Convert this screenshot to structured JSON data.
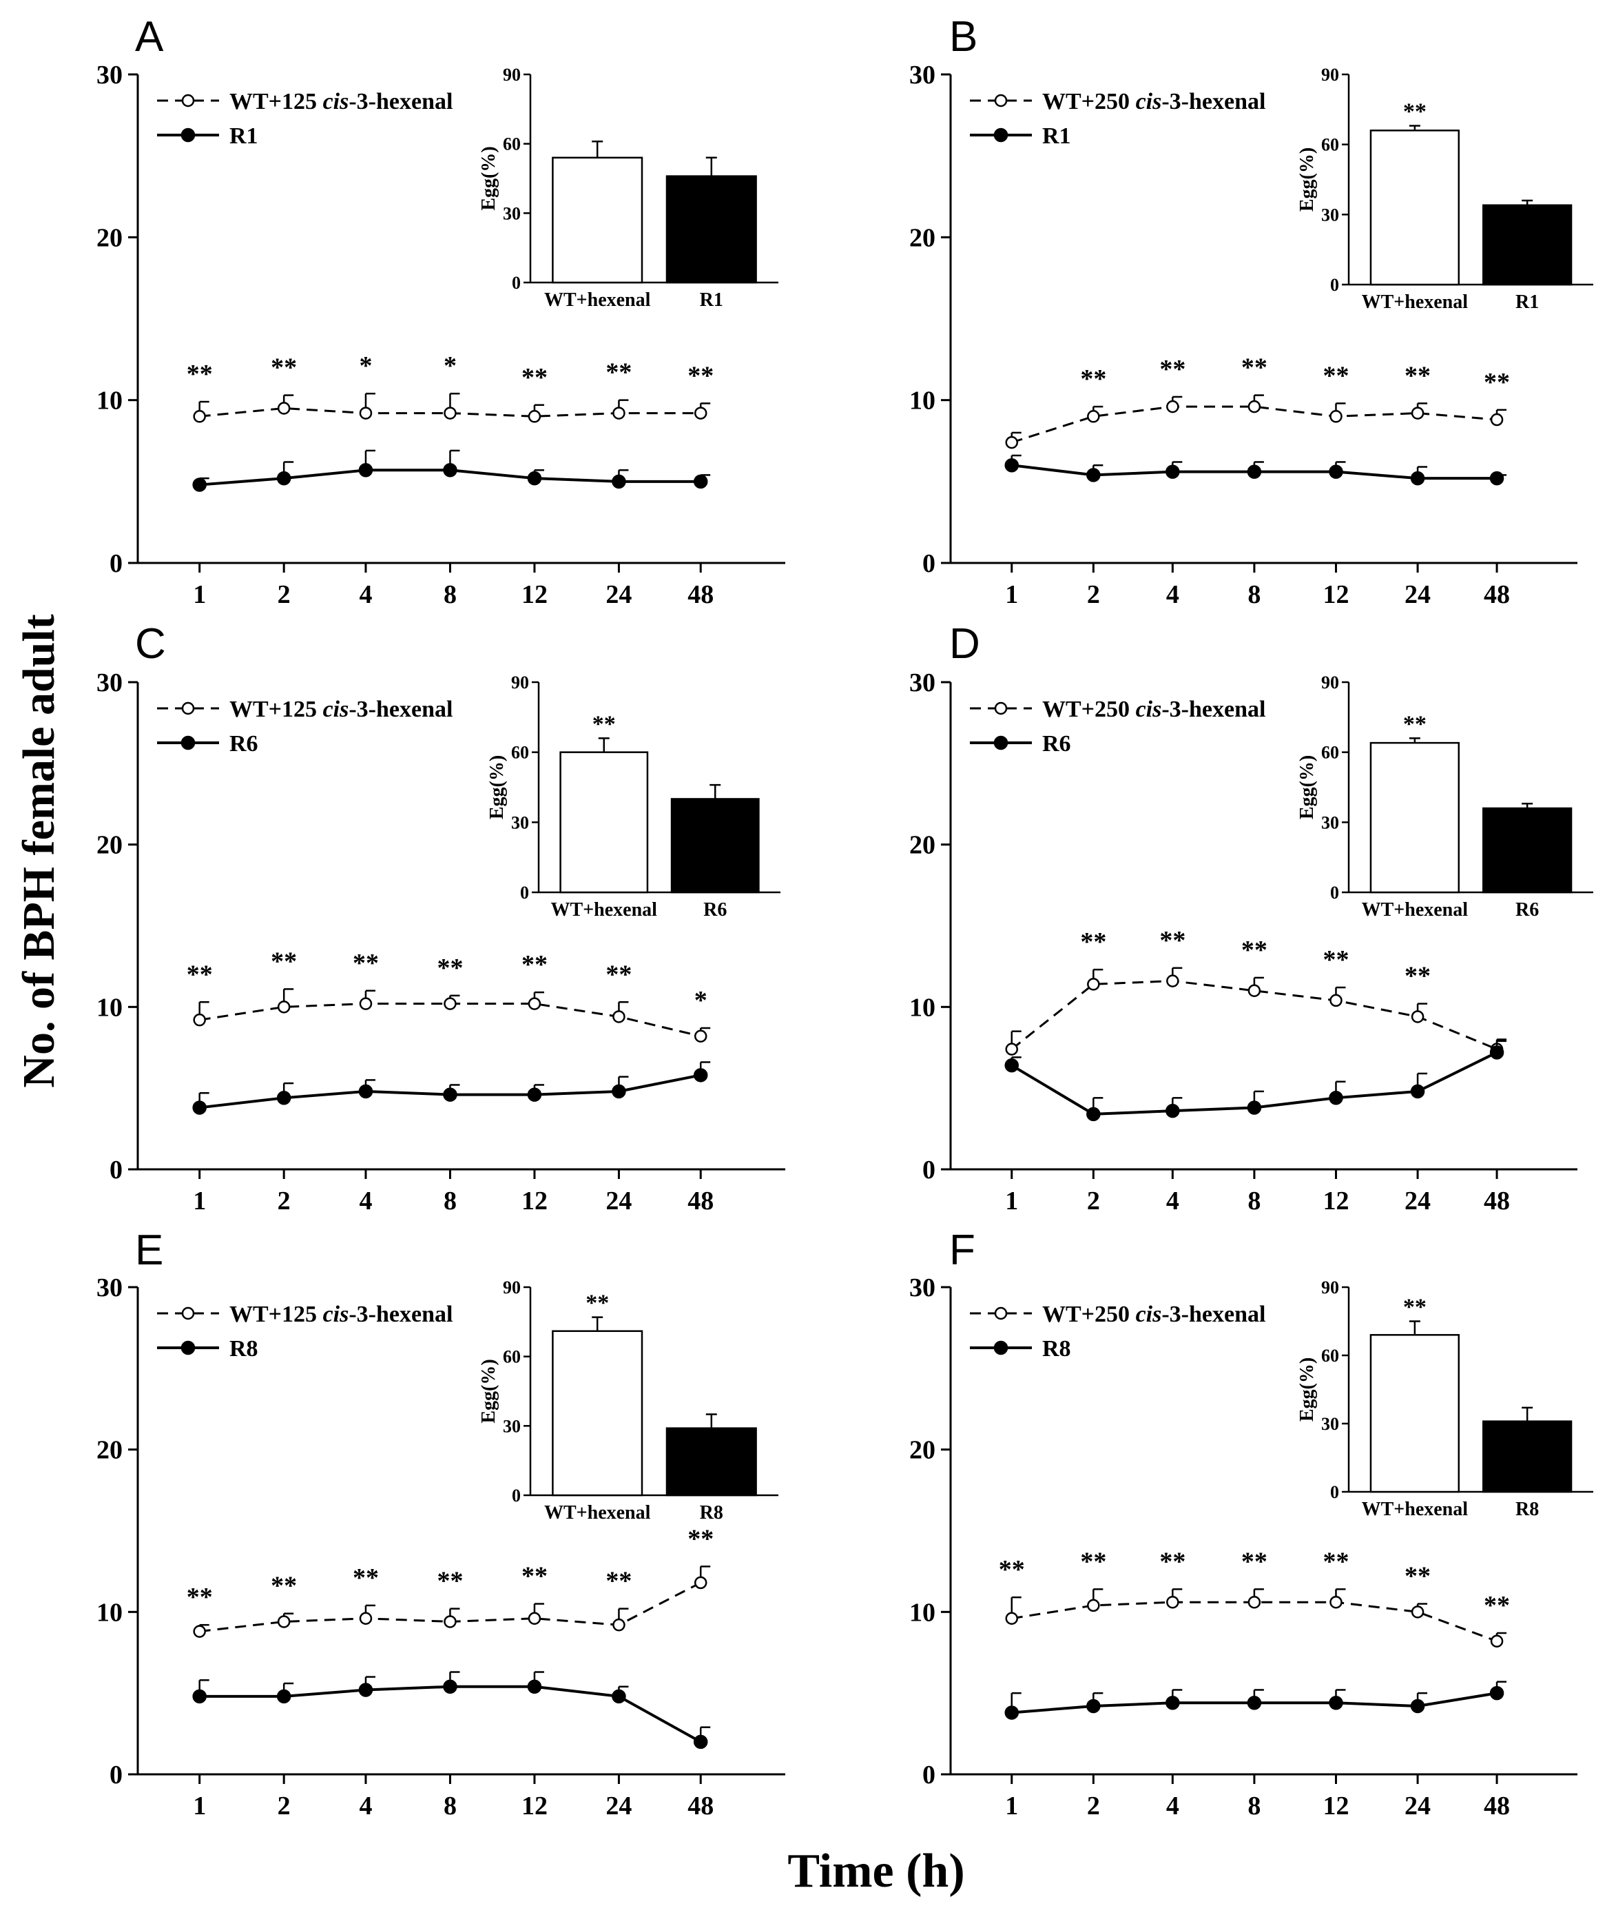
{
  "figure": {
    "ylabel": "No. of BPH female adult",
    "xlabel": "Time (h)"
  },
  "colors": {
    "axis": "#000000",
    "filled": "#000000",
    "open": "#ffffff"
  },
  "chart_data": [
    {
      "type": "line",
      "panel": "A",
      "categories": [
        "1",
        "2",
        "4",
        "8",
        "12",
        "24",
        "48"
      ],
      "ylim": [
        0,
        30
      ],
      "yticks": [
        "0",
        "10",
        "20",
        "30"
      ],
      "legend": {
        "dashed": {
          "prefix": "WT+125 ",
          "italic": "cis",
          "suffix": "-3-hexenal"
        },
        "solid": "R1"
      },
      "series": [
        {
          "name": "WT+125 cis-3-hexenal",
          "values": [
            9.0,
            9.5,
            9.2,
            9.2,
            9.0,
            9.2,
            9.2
          ],
          "errors": [
            0.9,
            0.8,
            1.2,
            1.2,
            0.7,
            0.8,
            0.6
          ]
        },
        {
          "name": "R1",
          "values": [
            4.8,
            5.2,
            5.7,
            5.7,
            5.2,
            5.0,
            5.0
          ],
          "errors": [
            0.4,
            1.0,
            1.2,
            1.2,
            0.5,
            0.7,
            0.4
          ]
        }
      ],
      "stars": [
        "**",
        "**",
        "*",
        "*",
        "**",
        "**",
        "**"
      ],
      "inset": {
        "type": "bar",
        "ylabel": "Egg(%)",
        "yticks": [
          "0",
          "30",
          "60",
          "90"
        ],
        "ylim": [
          0,
          90
        ],
        "categories": [
          "WT+hexenal",
          "R1"
        ],
        "values": [
          54,
          46
        ],
        "errors": [
          7,
          8
        ],
        "stars": [
          "",
          ""
        ]
      }
    },
    {
      "type": "line",
      "panel": "B",
      "categories": [
        "1",
        "2",
        "4",
        "8",
        "12",
        "24",
        "48"
      ],
      "ylim": [
        0,
        30
      ],
      "yticks": [
        "0",
        "10",
        "20",
        "30"
      ],
      "legend": {
        "dashed": {
          "prefix": "WT+250 ",
          "italic": "cis",
          "suffix": "-3-hexenal"
        },
        "solid": "R1"
      },
      "series": [
        {
          "name": "WT+250 cis-3-hexenal",
          "values": [
            7.4,
            9.0,
            9.6,
            9.6,
            9.0,
            9.2,
            8.8
          ],
          "errors": [
            0.6,
            0.6,
            0.6,
            0.7,
            0.8,
            0.6,
            0.6
          ]
        },
        {
          "name": "R1",
          "values": [
            6.0,
            5.4,
            5.6,
            5.6,
            5.6,
            5.2,
            5.2
          ],
          "errors": [
            0.6,
            0.6,
            0.6,
            0.6,
            0.6,
            0.7,
            0.2
          ]
        }
      ],
      "stars": [
        "",
        "**",
        "**",
        "**",
        "**",
        "**",
        "**"
      ],
      "inset": {
        "type": "bar",
        "ylabel": "Egg(%)",
        "yticks": [
          "0",
          "30",
          "60",
          "90"
        ],
        "ylim": [
          0,
          90
        ],
        "categories": [
          "WT+hexenal",
          "R1"
        ],
        "values": [
          66,
          34
        ],
        "errors": [
          2,
          2
        ],
        "stars": [
          "**",
          ""
        ]
      }
    },
    {
      "type": "line",
      "panel": "C",
      "categories": [
        "1",
        "2",
        "4",
        "8",
        "12",
        "24",
        "48"
      ],
      "ylim": [
        0,
        30
      ],
      "yticks": [
        "0",
        "10",
        "20",
        "30"
      ],
      "legend": {
        "dashed": {
          "prefix": "WT+125 ",
          "italic": "cis",
          "suffix": "-3-hexenal"
        },
        "solid": "R6"
      },
      "series": [
        {
          "name": "WT+125 cis-3-hexenal",
          "values": [
            9.2,
            10.0,
            10.2,
            10.2,
            10.2,
            9.4,
            8.2
          ],
          "errors": [
            1.1,
            1.1,
            0.8,
            0.5,
            0.7,
            0.9,
            0.5
          ]
        },
        {
          "name": "R6",
          "values": [
            3.8,
            4.4,
            4.8,
            4.6,
            4.6,
            4.8,
            5.8
          ],
          "errors": [
            0.9,
            0.9,
            0.7,
            0.6,
            0.6,
            0.9,
            0.8
          ]
        }
      ],
      "stars": [
        "**",
        "**",
        "**",
        "**",
        "**",
        "**",
        "*"
      ],
      "inset": {
        "type": "bar",
        "ylabel": "Egg(%)",
        "yticks": [
          "0",
          "30",
          "60",
          "90"
        ],
        "ylim": [
          0,
          90
        ],
        "categories": [
          "WT+hexenal",
          "R6"
        ],
        "values": [
          60,
          40
        ],
        "errors": [
          6,
          6
        ],
        "stars": [
          "**",
          ""
        ]
      }
    },
    {
      "type": "line",
      "panel": "D",
      "categories": [
        "1",
        "2",
        "4",
        "8",
        "12",
        "24",
        "48"
      ],
      "ylim": [
        0,
        30
      ],
      "yticks": [
        "0",
        "10",
        "20",
        "30"
      ],
      "legend": {
        "dashed": {
          "prefix": "WT+250 ",
          "italic": "cis",
          "suffix": "-3-hexenal"
        },
        "solid": "R6"
      },
      "series": [
        {
          "name": "WT+250 cis-3-hexenal",
          "values": [
            7.4,
            11.4,
            11.6,
            11.0,
            10.4,
            9.4,
            7.4
          ],
          "errors": [
            1.1,
            0.9,
            0.8,
            0.8,
            0.8,
            0.8,
            0.6
          ]
        },
        {
          "name": "R6",
          "values": [
            6.4,
            3.4,
            3.6,
            3.8,
            4.4,
            4.8,
            7.2
          ],
          "errors": [
            0.5,
            1.0,
            0.8,
            1.0,
            1.0,
            1.1,
            0.7
          ]
        }
      ],
      "stars": [
        "",
        "**",
        "**",
        "**",
        "**",
        "**",
        ""
      ],
      "inset": {
        "type": "bar",
        "ylabel": "Egg(%)",
        "yticks": [
          "0",
          "30",
          "60",
          "90"
        ],
        "ylim": [
          0,
          90
        ],
        "categories": [
          "WT+hexenal",
          "R6"
        ],
        "values": [
          64,
          36
        ],
        "errors": [
          2,
          2
        ],
        "stars": [
          "**",
          ""
        ]
      }
    },
    {
      "type": "line",
      "panel": "E",
      "categories": [
        "1",
        "2",
        "4",
        "8",
        "12",
        "24",
        "48"
      ],
      "ylim": [
        0,
        30
      ],
      "yticks": [
        "0",
        "10",
        "20",
        "30"
      ],
      "legend": {
        "dashed": {
          "prefix": "WT+125 ",
          "italic": "cis",
          "suffix": "-3-hexenal"
        },
        "solid": "R8"
      },
      "series": [
        {
          "name": "WT+125 cis-3-hexenal",
          "values": [
            8.8,
            9.4,
            9.6,
            9.4,
            9.6,
            9.2,
            11.8
          ],
          "errors": [
            0.4,
            0.5,
            0.8,
            0.8,
            0.9,
            1.0,
            1.0
          ]
        },
        {
          "name": "R8",
          "values": [
            4.8,
            4.8,
            5.2,
            5.4,
            5.4,
            4.8,
            2.0
          ],
          "errors": [
            1.0,
            0.8,
            0.8,
            0.9,
            0.9,
            0.6,
            0.9
          ]
        }
      ],
      "stars": [
        "**",
        "**",
        "**",
        "**",
        "**",
        "**",
        "**"
      ],
      "inset": {
        "type": "bar",
        "ylabel": "Egg(%)",
        "yticks": [
          "0",
          "30",
          "60",
          "90"
        ],
        "ylim": [
          0,
          90
        ],
        "categories": [
          "WT+hexenal",
          "R8"
        ],
        "values": [
          71,
          29
        ],
        "errors": [
          6,
          6
        ],
        "stars": [
          "**",
          ""
        ]
      }
    },
    {
      "type": "line",
      "panel": "F",
      "categories": [
        "1",
        "2",
        "4",
        "8",
        "12",
        "24",
        "48"
      ],
      "ylim": [
        0,
        30
      ],
      "yticks": [
        "0",
        "10",
        "20",
        "30"
      ],
      "legend": {
        "dashed": {
          "prefix": "WT+250 ",
          "italic": "cis",
          "suffix": "-3-hexenal"
        },
        "solid": "R8"
      },
      "series": [
        {
          "name": "WT+250 cis-3-hexenal",
          "values": [
            9.6,
            10.4,
            10.6,
            10.6,
            10.6,
            10.0,
            8.2
          ],
          "errors": [
            1.3,
            1.0,
            0.8,
            0.8,
            0.8,
            0.5,
            0.5
          ]
        },
        {
          "name": "R8",
          "values": [
            3.8,
            4.2,
            4.4,
            4.4,
            4.4,
            4.2,
            5.0
          ],
          "errors": [
            1.2,
            0.8,
            0.8,
            0.8,
            0.8,
            0.8,
            0.7
          ]
        }
      ],
      "stars": [
        "**",
        "**",
        "**",
        "**",
        "**",
        "**",
        "**"
      ],
      "inset": {
        "type": "bar",
        "ylabel": "Egg(%)",
        "yticks": [
          "0",
          "30",
          "60",
          "90"
        ],
        "ylim": [
          0,
          90
        ],
        "categories": [
          "WT+hexenal",
          "R8"
        ],
        "values": [
          69,
          31
        ],
        "errors": [
          6,
          6
        ],
        "stars": [
          "**",
          ""
        ]
      }
    }
  ]
}
